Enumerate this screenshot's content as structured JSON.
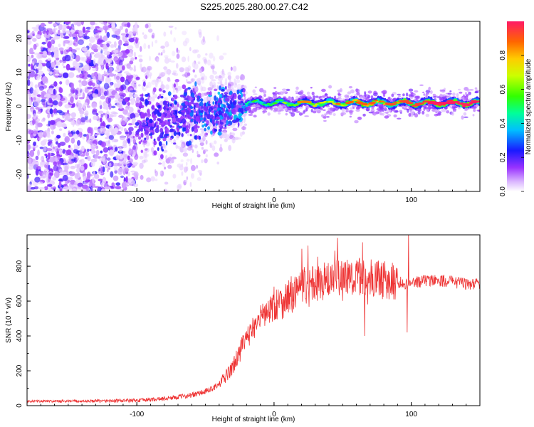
{
  "title": "S225.2025.280.00.27.C42",
  "chart_data": [
    {
      "type": "heatmap",
      "name": "spectrogram",
      "xlabel": "Height of straight line (km)",
      "ylabel": "Frequency (Hz)",
      "xlim": [
        -180,
        150
      ],
      "ylim": [
        -25,
        25
      ],
      "xticks": [
        -100,
        0,
        100
      ],
      "yticks": [
        -20,
        -10,
        0,
        10,
        20
      ],
      "colorbar": {
        "label": "Normalized spectral amplitude",
        "range": [
          0,
          1
        ],
        "ticks": [
          0.0,
          0.2,
          0.4,
          0.6,
          0.8
        ]
      },
      "features": {
        "noise_region_x": [
          -180,
          -100
        ],
        "noise_freq_range": [
          -25,
          25
        ],
        "transition_x": [
          -100,
          -20
        ],
        "transition_freq_center": -4,
        "signal_line_x": [
          -20,
          150
        ],
        "signal_line_freq": 1,
        "signal_peak_amplitude": 1.0
      }
    },
    {
      "type": "line",
      "name": "snr",
      "xlabel": "Height of straight line (km)",
      "ylabel": "SNR (10 * v/v)",
      "xlim": [
        -180,
        150
      ],
      "ylim": [
        0,
        980
      ],
      "xticks": [
        -100,
        0,
        100
      ],
      "yticks": [
        0,
        200,
        400,
        600,
        800
      ],
      "color": "#ee3333",
      "series": [
        {
          "name": "SNR",
          "x": [
            -180,
            -150,
            -120,
            -100,
            -80,
            -60,
            -50,
            -40,
            -30,
            -25,
            -20,
            -15,
            -10,
            -5,
            0,
            10,
            20,
            30,
            40,
            50,
            60,
            70,
            80,
            90,
            97,
            100,
            110,
            120,
            130,
            140,
            150
          ],
          "values": [
            25,
            25,
            27,
            30,
            40,
            60,
            80,
            120,
            220,
            320,
            380,
            450,
            500,
            540,
            570,
            620,
            680,
            700,
            720,
            740,
            740,
            730,
            720,
            710,
            700,
            700,
            720,
            720,
            710,
            700,
            700
          ]
        }
      ],
      "spikes": [
        {
          "x": 98,
          "value": 980
        },
        {
          "x": 97,
          "value": 420
        },
        {
          "x": 66,
          "value": 400
        }
      ]
    }
  ]
}
